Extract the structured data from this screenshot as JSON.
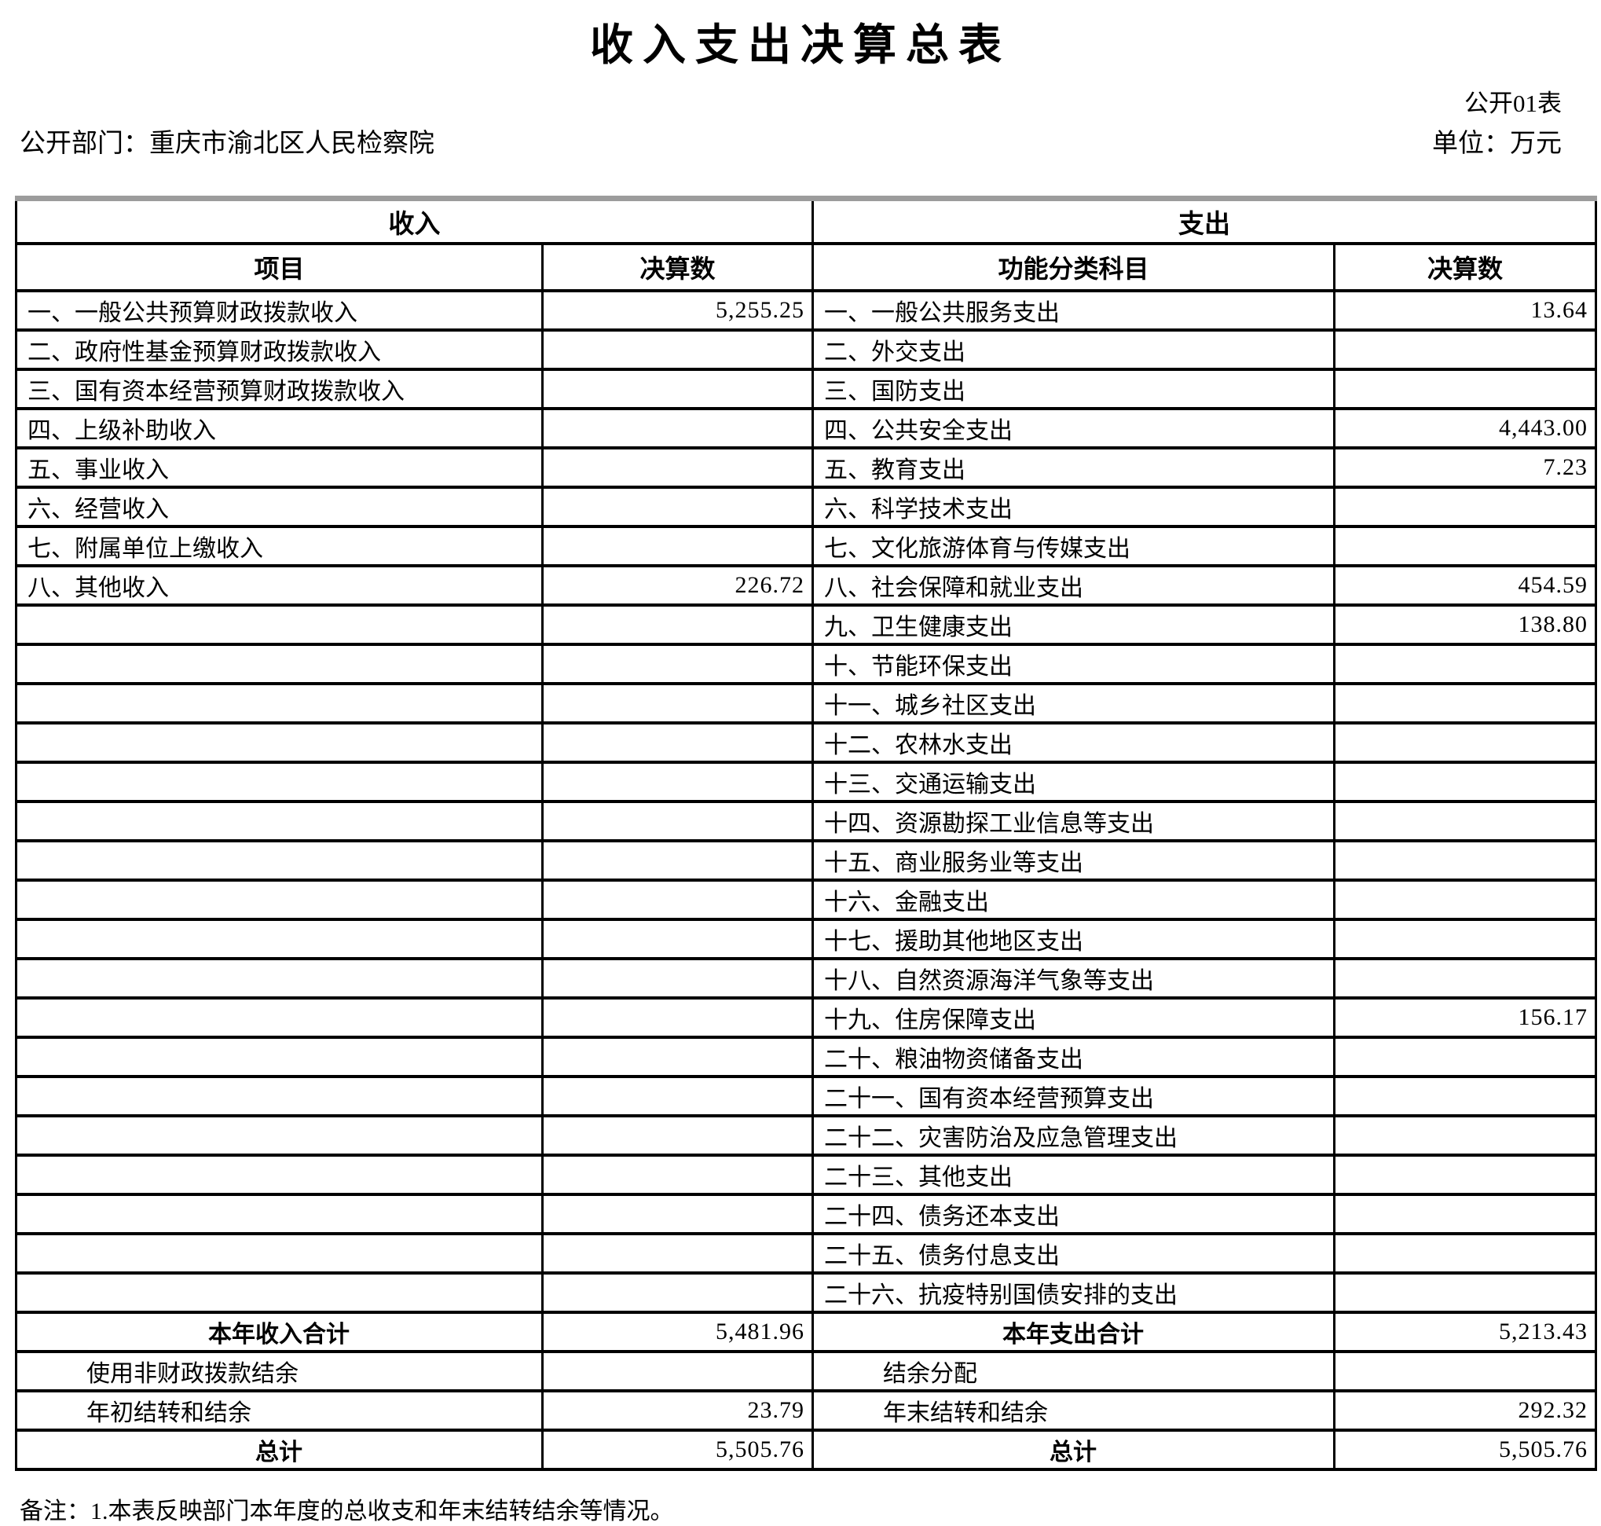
{
  "page": {
    "title": "收入支出决算总表",
    "table_code": "公开01表",
    "department_label": "公开部门：重庆市渝北区人民检察院",
    "unit_label": "单位：万元",
    "note": "备注：1.本表反映部门本年度的总收支和年末结转结余等情况。"
  },
  "table": {
    "income_section_header": "收入",
    "expense_section_header": "支出",
    "columns": {
      "income_item": "项目",
      "income_amount": "决算数",
      "expense_item": "功能分类科目",
      "expense_amount": "决算数"
    },
    "body_rows": [
      {
        "income_item": "一、一般公共预算财政拨款收入",
        "income_amount": "5,255.25",
        "expense_item": "一、一般公共服务支出",
        "expense_amount": "13.64"
      },
      {
        "income_item": "二、政府性基金预算财政拨款收入",
        "income_amount": "",
        "expense_item": "二、外交支出",
        "expense_amount": ""
      },
      {
        "income_item": "三、国有资本经营预算财政拨款收入",
        "income_amount": "",
        "expense_item": "三、国防支出",
        "expense_amount": ""
      },
      {
        "income_item": "四、上级补助收入",
        "income_amount": "",
        "expense_item": "四、公共安全支出",
        "expense_amount": "4,443.00"
      },
      {
        "income_item": "五、事业收入",
        "income_amount": "",
        "expense_item": "五、教育支出",
        "expense_amount": "7.23"
      },
      {
        "income_item": "六、经营收入",
        "income_amount": "",
        "expense_item": "六、科学技术支出",
        "expense_amount": ""
      },
      {
        "income_item": "七、附属单位上缴收入",
        "income_amount": "",
        "expense_item": "七、文化旅游体育与传媒支出",
        "expense_amount": ""
      },
      {
        "income_item": "八、其他收入",
        "income_amount": "226.72",
        "expense_item": "八、社会保障和就业支出",
        "expense_amount": "454.59"
      },
      {
        "income_item": "",
        "income_amount": "",
        "expense_item": "九、卫生健康支出",
        "expense_amount": "138.80"
      },
      {
        "income_item": "",
        "income_amount": "",
        "expense_item": "十、节能环保支出",
        "expense_amount": ""
      },
      {
        "income_item": "",
        "income_amount": "",
        "expense_item": "十一、城乡社区支出",
        "expense_amount": ""
      },
      {
        "income_item": "",
        "income_amount": "",
        "expense_item": "十二、农林水支出",
        "expense_amount": ""
      },
      {
        "income_item": "",
        "income_amount": "",
        "expense_item": "十三、交通运输支出",
        "expense_amount": ""
      },
      {
        "income_item": "",
        "income_amount": "",
        "expense_item": "十四、资源勘探工业信息等支出",
        "expense_amount": ""
      },
      {
        "income_item": "",
        "income_amount": "",
        "expense_item": "十五、商业服务业等支出",
        "expense_amount": ""
      },
      {
        "income_item": "",
        "income_amount": "",
        "expense_item": "十六、金融支出",
        "expense_amount": ""
      },
      {
        "income_item": "",
        "income_amount": "",
        "expense_item": "十七、援助其他地区支出",
        "expense_amount": ""
      },
      {
        "income_item": "",
        "income_amount": "",
        "expense_item": "十八、自然资源海洋气象等支出",
        "expense_amount": ""
      },
      {
        "income_item": "",
        "income_amount": "",
        "expense_item": "十九、住房保障支出",
        "expense_amount": "156.17"
      },
      {
        "income_item": "",
        "income_amount": "",
        "expense_item": "二十、粮油物资储备支出",
        "expense_amount": ""
      },
      {
        "income_item": "",
        "income_amount": "",
        "expense_item": "二十一、国有资本经营预算支出",
        "expense_amount": ""
      },
      {
        "income_item": "",
        "income_amount": "",
        "expense_item": "二十二、灾害防治及应急管理支出",
        "expense_amount": ""
      },
      {
        "income_item": "",
        "income_amount": "",
        "expense_item": "二十三、其他支出",
        "expense_amount": ""
      },
      {
        "income_item": "",
        "income_amount": "",
        "expense_item": "二十四、债务还本支出",
        "expense_amount": ""
      },
      {
        "income_item": "",
        "income_amount": "",
        "expense_item": "二十五、债务付息支出",
        "expense_amount": ""
      },
      {
        "income_item": "",
        "income_amount": "",
        "expense_item": "二十六、抗疫特别国债安排的支出",
        "expense_amount": ""
      }
    ],
    "summary_rows": [
      {
        "income_item": "本年收入合计",
        "income_amount": "5,481.96",
        "expense_item": "本年支出合计",
        "expense_amount": "5,213.43",
        "emphasis": "total"
      },
      {
        "income_item": "使用非财政拨款结余",
        "income_amount": "",
        "expense_item": "结余分配",
        "expense_amount": "",
        "emphasis": "indent"
      },
      {
        "income_item": "年初结转和结余",
        "income_amount": "23.79",
        "expense_item": "年末结转和结余",
        "expense_amount": "292.32",
        "emphasis": "indent"
      },
      {
        "income_item": "总计",
        "income_amount": "5,505.76",
        "expense_item": "总计",
        "expense_amount": "5,505.76",
        "emphasis": "total"
      }
    ]
  }
}
